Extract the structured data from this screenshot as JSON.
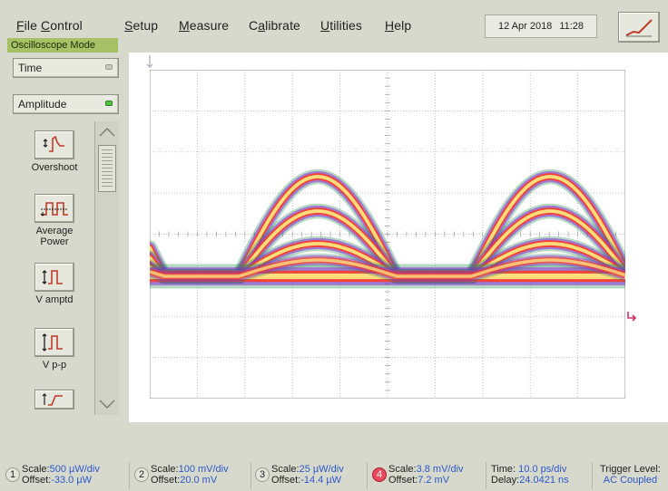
{
  "menu": {
    "file": {
      "u": "F",
      "rest": "ile"
    },
    "control": {
      "u": "C",
      "rest": "ontrol"
    },
    "setup": {
      "u": "S",
      "rest": "etup"
    },
    "measure": {
      "u": "M",
      "rest": "easure"
    },
    "calibrate": {
      "pre": "C",
      "u": "a",
      "rest": "librate"
    },
    "utilities": {
      "u": "U",
      "rest": "tilities"
    },
    "help": {
      "u": "H",
      "rest": "elp"
    }
  },
  "datetime": {
    "date": "12 Apr 2018",
    "time": "11:28"
  },
  "mode": "Oscilloscope Mode",
  "left_panel": {
    "time_label": "Time",
    "amplitude_label": "Amplitude",
    "measurements": [
      {
        "label": "Overshoot"
      },
      {
        "label": "Average Power"
      },
      {
        "label": "V amptd"
      },
      {
        "label": "V p-p"
      }
    ]
  },
  "channels": [
    {
      "num": "1",
      "scale_k": "Scale:",
      "scale_v": "500 µW/div",
      "offset_k": "Offset:",
      "offset_v": "-33.0 µW"
    },
    {
      "num": "2",
      "scale_k": "Scale:",
      "scale_v": "100 mV/div",
      "offset_k": "Offset:",
      "offset_v": "20.0 mV"
    },
    {
      "num": "3",
      "scale_k": "Scale:",
      "scale_v": "25 µW/div",
      "offset_k": "Offset:",
      "offset_v": "-14.4 µW"
    },
    {
      "num": "4",
      "scale_k": "Scale:",
      "scale_v": "3.8 mV/div",
      "offset_k": "Offset:",
      "offset_v": "7.2 mV"
    }
  ],
  "timebase": {
    "time_k": "Time:",
    "time_v": "10.0 ps/div",
    "delay_k": "Delay:",
    "delay_v": "24.0421 ns"
  },
  "trigger": {
    "label": "Trigger Level:",
    "value": "AC Coupled"
  },
  "colors": {
    "mode_bar": "#a7c266",
    "value_text": "#2c57c9",
    "active_channel": "#e64a5c",
    "trace_hot": "#ffe680",
    "trace_mid": "#ff3b1f",
    "trace_cool": "#8a2be2",
    "trace_edge": "#2e8b57"
  },
  "icons": {
    "trend": "trend-line-icon",
    "scroll_up": "chevron-up-icon",
    "scroll_down": "chevron-down-icon",
    "marker": "trigger-marker-icon"
  }
}
